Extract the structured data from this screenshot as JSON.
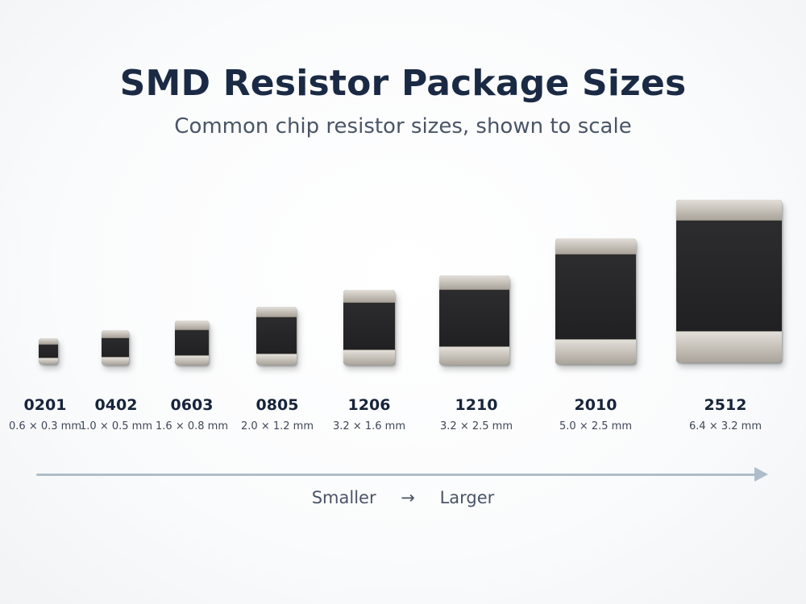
{
  "header": {
    "title": "SMD Resistor Package Sizes",
    "subtitle": "Common chip resistor sizes, shown to scale"
  },
  "packages": [
    {
      "code": "0201",
      "dimensions": "0.6 × 0.3 mm"
    },
    {
      "code": "0402",
      "dimensions": "1.0 × 0.5 mm"
    },
    {
      "code": "0603",
      "dimensions": "1.6 × 0.8 mm"
    },
    {
      "code": "0805",
      "dimensions": "2.0 × 1.2 mm"
    },
    {
      "code": "1206",
      "dimensions": "3.2 × 1.6 mm"
    },
    {
      "code": "1210",
      "dimensions": "3.2 × 2.5 mm"
    },
    {
      "code": "2010",
      "dimensions": "5.0 × 2.5 mm"
    },
    {
      "code": "2512",
      "dimensions": "6.4 × 3.2 mm"
    }
  ],
  "scale": {
    "left_label": "Smaller",
    "arrow": "→",
    "right_label": "Larger"
  },
  "colors": {
    "title": "#1b2a44",
    "resistor_body": "#1d1d1f",
    "terminal": "#c9c4bc",
    "arrow": "#aebdc9"
  }
}
